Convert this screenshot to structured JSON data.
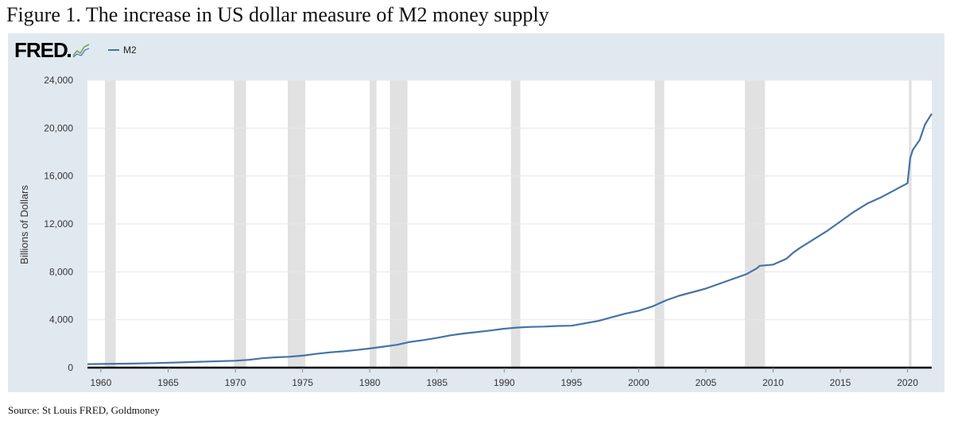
{
  "figure_title": "Figure 1. The increase in US dollar measure of M2 money supply",
  "logo": {
    "text": "FRED",
    "icon": "fred-chart-icon"
  },
  "source_note": "Source: St Louis FRED, Goldmoney",
  "colors": {
    "panel": "#e1e9f0",
    "plot_bg": "#ffffff",
    "line": "#4572a7",
    "recession": "#e1e1e1",
    "baseline": "#000000"
  },
  "chart_data": {
    "type": "line",
    "title": "",
    "xlabel": "",
    "ylabel": "Billions of Dollars",
    "xlim": [
      1959,
      2021.8
    ],
    "ylim": [
      0,
      24000
    ],
    "grid": true,
    "legend_position": "top-left",
    "x_ticks": [
      1960,
      1965,
      1970,
      1975,
      1980,
      1985,
      1990,
      1995,
      2000,
      2005,
      2010,
      2015,
      2020
    ],
    "x_tick_labels": [
      "1960",
      "1965",
      "1970",
      "1975",
      "1980",
      "1985",
      "1990",
      "1995",
      "2000",
      "2005",
      "2010",
      "2015",
      "2020"
    ],
    "y_ticks": [
      0,
      4000,
      8000,
      12000,
      16000,
      20000,
      24000
    ],
    "y_tick_labels": [
      "0",
      "4,000",
      "8,000",
      "12,000",
      "16,000",
      "20,000",
      "24,000"
    ],
    "recessions": [
      [
        1960.3,
        1961.1
      ],
      [
        1969.9,
        1970.8
      ],
      [
        1973.9,
        1975.2
      ],
      [
        1980.0,
        1980.5
      ],
      [
        1981.5,
        1982.8
      ],
      [
        1990.5,
        1991.2
      ],
      [
        2001.2,
        2001.9
      ],
      [
        2007.9,
        2009.4
      ],
      [
        2020.1,
        2020.3
      ]
    ],
    "series": [
      {
        "name": "M2",
        "x": [
          1959,
          1960,
          1962,
          1964,
          1966,
          1968,
          1970,
          1971,
          1972,
          1973,
          1974,
          1975,
          1976,
          1977,
          1978,
          1979,
          1980,
          1981,
          1982,
          1983,
          1984,
          1985,
          1986,
          1987,
          1988,
          1989,
          1990,
          1991,
          1992,
          1993,
          1994,
          1995,
          1996,
          1997,
          1998,
          1999,
          2000,
          2001,
          2002,
          2003,
          2004,
          2005,
          2006,
          2007,
          2008,
          2008.8,
          2009,
          2010,
          2011,
          2011.5,
          2012,
          2013,
          2014,
          2015,
          2016,
          2017,
          2018,
          2019,
          2020.0,
          2020.2,
          2020.4,
          2020.9,
          2021.3,
          2021.8
        ],
        "values": [
          290,
          305,
          330,
          380,
          440,
          510,
          580,
          650,
          780,
          860,
          910,
          1000,
          1150,
          1270,
          1360,
          1470,
          1600,
          1750,
          1900,
          2150,
          2300,
          2480,
          2700,
          2850,
          2980,
          3100,
          3250,
          3350,
          3400,
          3430,
          3480,
          3500,
          3700,
          3900,
          4200,
          4500,
          4750,
          5100,
          5600,
          6000,
          6300,
          6600,
          7000,
          7400,
          7800,
          8300,
          8500,
          8600,
          9100,
          9600,
          10000,
          10700,
          11400,
          12200,
          13000,
          13700,
          14200,
          14800,
          15400,
          17500,
          18200,
          19000,
          20300,
          21200
        ]
      }
    ]
  }
}
